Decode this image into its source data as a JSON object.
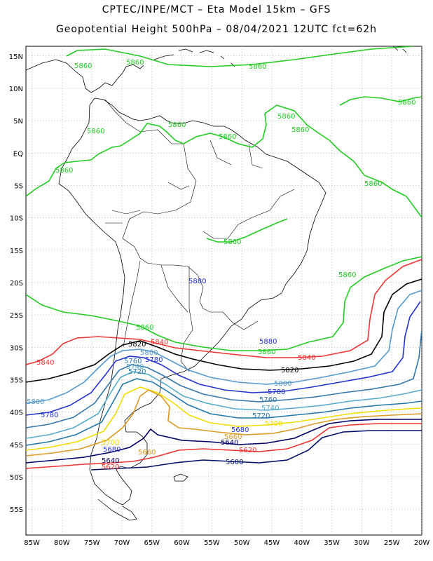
{
  "header": {
    "line1": "CPTEC/INPE/MCT –  Eta Model 15km – GFS",
    "line2": "Geopotential Height 500hPa – 08/04/2021 12UTC fct=62h"
  },
  "axes": {
    "lat_ticks": [
      "15N",
      "10N",
      "5N",
      "EQ",
      "5S",
      "10S",
      "15S",
      "20S",
      "25S",
      "30S",
      "35S",
      "40S",
      "45S",
      "50S",
      "55S"
    ],
    "lon_ticks": [
      "85W",
      "80W",
      "75W",
      "70W",
      "65W",
      "60W",
      "55W",
      "50W",
      "45W",
      "40W",
      "35W",
      "30W",
      "25W",
      "20W"
    ],
    "lat_range": [
      16.5,
      -59
    ],
    "lon_range": [
      -86,
      -20
    ],
    "grid": "dotted"
  },
  "colors": {
    "c5860": "#22cc22",
    "c5840": "#ee3333",
    "c5820": "#000000",
    "c5800": "#5599cc",
    "c5780": "#2233cc",
    "c5760": "#3377aa",
    "c5740": "#55aacc",
    "c5720": "#2277aa",
    "c5700": "#f2dd00",
    "c5680": "#dd9922",
    "c5640": "#000066",
    "c5600": "#001166",
    "coast": "#000000"
  },
  "contour_labels": [
    "5860",
    "5840",
    "5820",
    "5800",
    "5780",
    "5760",
    "5740",
    "5720",
    "5700",
    "5680",
    "5660",
    "5640",
    "5620",
    "5600"
  ]
}
